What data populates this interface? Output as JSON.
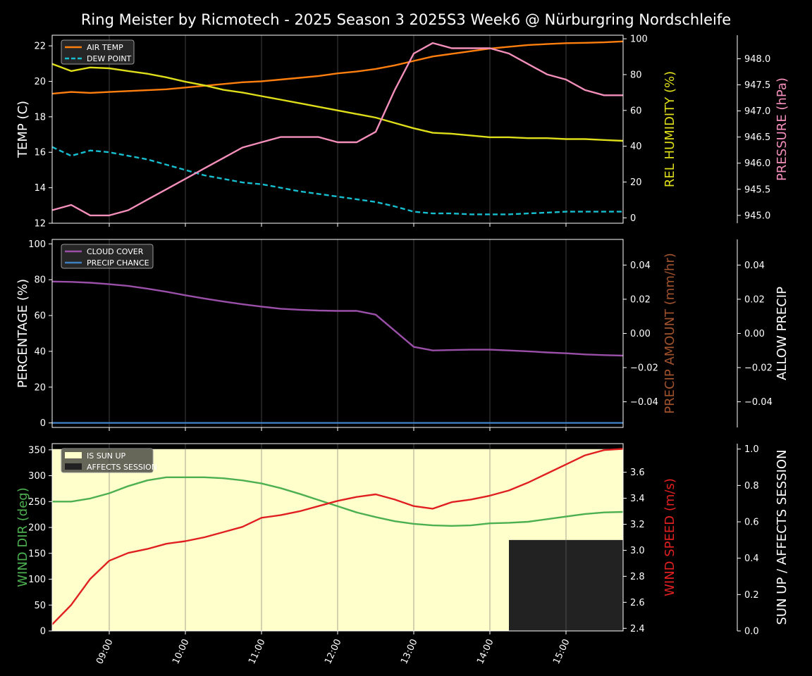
{
  "title": "Ring Meister by Ricmotech - 2025 Season 3 2025S3 Week6 @ Nürburgring Nordschleife",
  "x_axis": {
    "tick_labels": [
      "09:00",
      "10:00",
      "11:00",
      "12:00",
      "13:00",
      "14:00",
      "15:00"
    ],
    "tick_hours": [
      9,
      10,
      11,
      12,
      13,
      14,
      15
    ],
    "range_hours": [
      8.25,
      15.75
    ]
  },
  "colors": {
    "air_temp": "#ff7f0e",
    "dew_point": "#17becf",
    "humidity": "#dede1a",
    "pressure": "#f48fbb",
    "cloud_cover": "#9a4fa8",
    "precip_chance": "#3e7fc1",
    "precip_amount_label": "#a0522d",
    "wind_dir": "#4caf50",
    "wind_speed": "#e02020",
    "sun_up": "#ffffcc",
    "affects_session": "#222222"
  },
  "chart_data": [
    {
      "type": "line",
      "panel": "temperature",
      "x": [
        8.25,
        8.5,
        8.75,
        9.0,
        9.25,
        9.5,
        9.75,
        10.0,
        10.25,
        10.5,
        10.75,
        11.0,
        11.25,
        11.5,
        11.75,
        12.0,
        12.25,
        12.5,
        12.75,
        13.0,
        13.25,
        13.5,
        13.75,
        14.0,
        14.25,
        14.5,
        14.75,
        15.0,
        15.25,
        15.5,
        15.75
      ],
      "series": [
        {
          "name": "AIR TEMP",
          "axis": "left",
          "values": [
            19.3,
            19.4,
            19.35,
            19.4,
            19.45,
            19.5,
            19.55,
            19.65,
            19.75,
            19.85,
            19.95,
            20.0,
            20.1,
            20.2,
            20.3,
            20.45,
            20.55,
            20.7,
            20.9,
            21.15,
            21.4,
            21.55,
            21.7,
            21.85,
            21.95,
            22.05,
            22.1,
            22.15,
            22.17,
            22.2,
            22.25
          ]
        },
        {
          "name": "DEW POINT",
          "axis": "left",
          "values": [
            16.3,
            15.8,
            16.1,
            16.0,
            15.8,
            15.6,
            15.3,
            15.0,
            14.7,
            14.5,
            14.3,
            14.2,
            14.0,
            13.8,
            13.65,
            13.5,
            13.35,
            13.2,
            12.95,
            12.65,
            12.55,
            12.55,
            12.5,
            12.5,
            12.5,
            12.55,
            12.6,
            12.65,
            12.65,
            12.65,
            12.65
          ]
        },
        {
          "name": "REL HUMIDITY",
          "axis": "right",
          "values": [
            86,
            82,
            84,
            83.5,
            82,
            80.5,
            78.5,
            76,
            74,
            71.5,
            70,
            68,
            66,
            64,
            62,
            60,
            58,
            56,
            53,
            50,
            47.5,
            47,
            46,
            45,
            45,
            44.5,
            44.5,
            44,
            44,
            43.5,
            43
          ]
        },
        {
          "name": "PRESSURE",
          "axis": "right2",
          "values": [
            945.1,
            945.2,
            945.0,
            945.0,
            945.1,
            945.3,
            945.5,
            945.7,
            945.9,
            946.1,
            946.3,
            946.4,
            946.5,
            946.5,
            946.5,
            946.4,
            946.4,
            946.6,
            947.4,
            948.1,
            948.3,
            948.2,
            948.2,
            948.2,
            948.1,
            947.9,
            947.7,
            947.6,
            947.4,
            947.3,
            947.3
          ]
        }
      ],
      "ylabel": "TEMP (C)",
      "ylim": [
        12,
        22.6
      ],
      "yticks": [
        12,
        14,
        16,
        18,
        20,
        22
      ],
      "y2label": "REL HUMIDITY (%)",
      "y2lim": [
        -3,
        102
      ],
      "y2ticks": [
        0,
        20,
        40,
        60,
        80,
        100
      ],
      "y3label": "PRESSURE (hPa)",
      "y3lim": [
        944.85,
        948.45
      ],
      "y3ticks": [
        945.0,
        945.5,
        946.0,
        946.5,
        947.0,
        947.5,
        948.0
      ],
      "y3tick_labels": [
        "945.0",
        "945.5",
        "946.0",
        "946.5",
        "947.0",
        "947.5",
        "948.0"
      ],
      "legend": [
        "AIR TEMP",
        "DEW POINT"
      ],
      "legend_position": "top-left",
      "grid": "vertical"
    },
    {
      "type": "line",
      "panel": "precipitation",
      "x": [
        8.25,
        8.5,
        8.75,
        9.0,
        9.25,
        9.5,
        9.75,
        10.0,
        10.25,
        10.5,
        10.75,
        11.0,
        11.25,
        11.5,
        11.75,
        12.0,
        12.25,
        12.5,
        12.75,
        13.0,
        13.25,
        13.5,
        13.75,
        14.0,
        14.25,
        14.5,
        14.75,
        15.0,
        15.25,
        15.5,
        15.75
      ],
      "series": [
        {
          "name": "CLOUD COVER",
          "axis": "left",
          "values": [
            79,
            78.8,
            78.3,
            77.5,
            76.5,
            75,
            73.3,
            71.3,
            69.5,
            67.8,
            66.3,
            65,
            63.8,
            63.2,
            62.8,
            62.6,
            62.6,
            60.5,
            51.5,
            42.5,
            40.5,
            40.7,
            40.9,
            40.9,
            40.5,
            40,
            39.4,
            38.9,
            38.3,
            37.9,
            37.6
          ]
        },
        {
          "name": "PRECIP CHANCE",
          "axis": "left",
          "values": [
            0,
            0,
            0,
            0,
            0,
            0,
            0,
            0,
            0,
            0,
            0,
            0,
            0,
            0,
            0,
            0,
            0,
            0,
            0,
            0,
            0,
            0,
            0,
            0,
            0,
            0,
            0,
            0,
            0,
            0,
            0
          ]
        }
      ],
      "ylabel": "PERCENTAGE (%)",
      "ylim": [
        -2.5,
        102.5
      ],
      "yticks": [
        0,
        20,
        40,
        60,
        80,
        100
      ],
      "y2label": "PRECIP AMOUNT (mm/hr)",
      "y2lim": [
        -0.055,
        0.055
      ],
      "y2ticks": [
        -0.04,
        -0.02,
        0.0,
        0.02,
        0.04
      ],
      "y2tick_labels": [
        "−0.04",
        "−0.02",
        "0.00",
        "0.02",
        "0.04"
      ],
      "y3label": "ALLOW PRECIP",
      "y3lim": [
        -0.055,
        0.055
      ],
      "y3ticks": [
        -0.04,
        -0.02,
        0.0,
        0.02,
        0.04
      ],
      "y3tick_labels": [
        "−0.04",
        "−0.02",
        "0.00",
        "0.02",
        "0.04"
      ],
      "legend": [
        "CLOUD COVER",
        "PRECIP CHANCE"
      ],
      "legend_position": "top-left",
      "grid": "vertical"
    },
    {
      "type": "line",
      "panel": "wind",
      "x": [
        8.25,
        8.5,
        8.75,
        9.0,
        9.25,
        9.5,
        9.75,
        10.0,
        10.25,
        10.5,
        10.75,
        11.0,
        11.25,
        11.5,
        11.75,
        12.0,
        12.25,
        12.5,
        12.75,
        13.0,
        13.25,
        13.5,
        13.75,
        14.0,
        14.25,
        14.5,
        14.75,
        15.0,
        15.25,
        15.5,
        15.75
      ],
      "series": [
        {
          "name": "WIND DIR",
          "axis": "left",
          "values": [
            250,
            250,
            256,
            266,
            280,
            291,
            297,
            297,
            297,
            295,
            291,
            285,
            276,
            265,
            253,
            241,
            229,
            220,
            212,
            207,
            204,
            203,
            204,
            208,
            209,
            211,
            216,
            221,
            226,
            229,
            230
          ]
        },
        {
          "name": "WIND SPEED",
          "axis": "right",
          "values": [
            2.43,
            2.58,
            2.78,
            2.92,
            2.98,
            3.01,
            3.05,
            3.07,
            3.1,
            3.14,
            3.18,
            3.25,
            3.27,
            3.3,
            3.34,
            3.38,
            3.41,
            3.43,
            3.39,
            3.34,
            3.32,
            3.37,
            3.39,
            3.42,
            3.46,
            3.52,
            3.59,
            3.66,
            3.73,
            3.77,
            3.78
          ]
        }
      ],
      "areas": [
        {
          "name": "IS SUN UP",
          "x_range": [
            8.25,
            15.75
          ],
          "level": 1
        },
        {
          "name": "AFFECTS SESSION",
          "x_range": [
            14.25,
            15.75
          ],
          "level": 0.5
        }
      ],
      "ylabel": "WIND DIR (deg)",
      "ylim": [
        0,
        362
      ],
      "yticks": [
        0,
        50,
        100,
        150,
        200,
        250,
        300,
        350
      ],
      "y2label": "WIND SPEED (m/s)",
      "y2lim": [
        2.38,
        3.82
      ],
      "y2ticks": [
        2.4,
        2.6,
        2.8,
        3.0,
        3.2,
        3.4,
        3.6
      ],
      "y2tick_labels": [
        "2.4",
        "2.6",
        "2.8",
        "3.0",
        "3.2",
        "3.4",
        "3.6"
      ],
      "y3label": "SUN UP / AFFECTS SESSION",
      "y3lim": [
        0,
        1.03
      ],
      "y3ticks": [
        0,
        0.2,
        0.4,
        0.6,
        0.8,
        1.0
      ],
      "y3tick_labels": [
        "0.0",
        "0.2",
        "0.4",
        "0.6",
        "0.8",
        "1.0"
      ],
      "legend": [
        "IS SUN UP",
        "AFFECTS SESSION"
      ],
      "legend_position": "top-left",
      "grid": "vertical"
    }
  ]
}
